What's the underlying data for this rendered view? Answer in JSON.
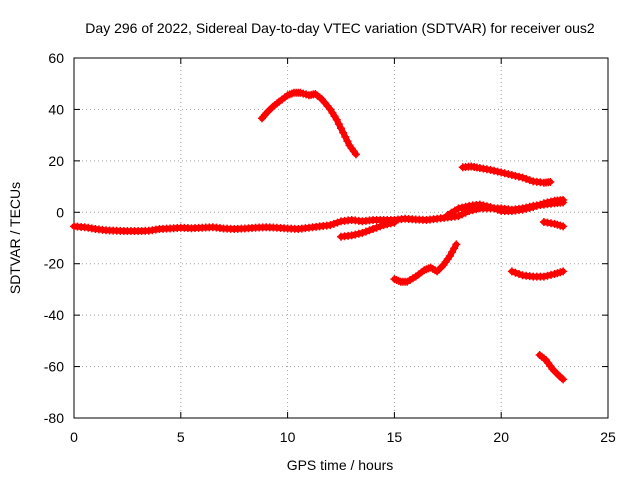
{
  "chart_data": {
    "type": "scatter",
    "title": "Day 296 of 2022, Sidereal Day-to-day VTEC variation (SDTVAR) for receiver ous2",
    "xlabel": "GPS time / hours",
    "ylabel": "SDTVAR / TECUs",
    "xlim": [
      0,
      25
    ],
    "ylim": [
      -80,
      60
    ],
    "xticks": [
      "0",
      "5",
      "10",
      "15",
      "20",
      "25"
    ],
    "yticks": [
      "-80",
      "-60",
      "-40",
      "-20",
      "0",
      "20",
      "40",
      "60"
    ],
    "grid": true,
    "legend": "none",
    "series_color": "#ff0000",
    "series": [
      {
        "name": "main-band",
        "points": [
          [
            0.0,
            -5.5
          ],
          [
            0.5,
            -5.8
          ],
          [
            1.0,
            -6.5
          ],
          [
            1.5,
            -7.0
          ],
          [
            2.0,
            -7.2
          ],
          [
            2.5,
            -7.3
          ],
          [
            3.0,
            -7.3
          ],
          [
            3.5,
            -7.2
          ],
          [
            4.0,
            -6.5
          ],
          [
            4.5,
            -6.3
          ],
          [
            5.0,
            -6.0
          ],
          [
            5.5,
            -6.2
          ],
          [
            6.0,
            -6.0
          ],
          [
            6.5,
            -5.8
          ],
          [
            7.0,
            -6.3
          ],
          [
            7.5,
            -6.5
          ],
          [
            8.0,
            -6.3
          ],
          [
            8.5,
            -6.0
          ],
          [
            9.0,
            -5.8
          ],
          [
            9.5,
            -6.0
          ],
          [
            10.0,
            -6.3
          ],
          [
            10.5,
            -6.5
          ],
          [
            11.0,
            -6.0
          ],
          [
            11.5,
            -5.5
          ],
          [
            12.0,
            -5.0
          ],
          [
            12.5,
            -3.5
          ],
          [
            13.0,
            -3.0
          ],
          [
            13.5,
            -3.5
          ],
          [
            14.0,
            -3.0
          ],
          [
            14.5,
            -3.0
          ],
          [
            15.0,
            -3.0
          ],
          [
            15.5,
            -2.5
          ],
          [
            16.0,
            -2.8
          ],
          [
            16.5,
            -3.0
          ],
          [
            17.0,
            -2.5
          ],
          [
            17.5,
            -2.0
          ],
          [
            18.0,
            -1.5
          ],
          [
            18.5,
            0.5
          ],
          [
            19.0,
            1.5
          ],
          [
            19.5,
            1.5
          ],
          [
            20.0,
            1.5
          ],
          [
            20.5,
            1.0
          ],
          [
            21.0,
            1.5
          ],
          [
            21.5,
            2.5
          ],
          [
            22.0,
            3.0
          ],
          [
            22.5,
            3.5
          ],
          [
            22.9,
            3.8
          ]
        ]
      },
      {
        "name": "lower-branch",
        "points": [
          [
            12.5,
            -9.5
          ],
          [
            13.0,
            -9.0
          ],
          [
            13.5,
            -8.0
          ],
          [
            14.0,
            -6.5
          ],
          [
            14.5,
            -5.0
          ],
          [
            15.0,
            -4.0
          ]
        ]
      },
      {
        "name": "upper-branch",
        "points": [
          [
            17.5,
            -1.0
          ],
          [
            18.0,
            1.5
          ],
          [
            18.5,
            2.5
          ],
          [
            19.0,
            3.0
          ],
          [
            19.5,
            2.0
          ],
          [
            20.0,
            0.5
          ],
          [
            20.5,
            0.5
          ],
          [
            21.0,
            1.0
          ],
          [
            21.5,
            2.0
          ],
          [
            22.0,
            3.5
          ],
          [
            22.5,
            4.5
          ],
          [
            22.9,
            4.8
          ]
        ]
      },
      {
        "name": "arc-40",
        "points": [
          [
            8.8,
            36.5
          ],
          [
            9.0,
            38.5
          ],
          [
            9.3,
            41.0
          ],
          [
            9.6,
            43.0
          ],
          [
            10.0,
            45.5
          ],
          [
            10.3,
            46.5
          ],
          [
            10.6,
            46.5
          ],
          [
            11.0,
            45.5
          ],
          [
            11.3,
            46.0
          ],
          [
            11.6,
            44.0
          ],
          [
            12.0,
            40.0
          ],
          [
            12.3,
            36.0
          ],
          [
            12.6,
            31.0
          ],
          [
            12.9,
            26.0
          ],
          [
            13.2,
            22.5
          ]
        ]
      },
      {
        "name": "arc-17",
        "points": [
          [
            18.2,
            17.5
          ],
          [
            18.6,
            17.8
          ],
          [
            19.0,
            17.2
          ],
          [
            19.5,
            16.5
          ],
          [
            20.0,
            15.5
          ],
          [
            20.5,
            14.5
          ],
          [
            21.0,
            13.5
          ],
          [
            21.5,
            12.0
          ],
          [
            22.0,
            11.5
          ],
          [
            22.3,
            11.8
          ]
        ]
      },
      {
        "name": "arc-minus24",
        "points": [
          [
            15.0,
            -26.0
          ],
          [
            15.3,
            -27.0
          ],
          [
            15.6,
            -27.0
          ],
          [
            16.0,
            -25.0
          ],
          [
            16.4,
            -22.5
          ],
          [
            16.7,
            -21.5
          ],
          [
            17.0,
            -23.0
          ],
          [
            17.3,
            -20.5
          ],
          [
            17.6,
            -17.0
          ],
          [
            17.9,
            -12.5
          ]
        ]
      },
      {
        "name": "arc-minus24-right",
        "points": [
          [
            20.5,
            -23.0
          ],
          [
            21.0,
            -24.5
          ],
          [
            21.5,
            -25.0
          ],
          [
            22.0,
            -25.0
          ],
          [
            22.5,
            -24.0
          ],
          [
            22.9,
            -23.0
          ]
        ]
      },
      {
        "name": "arc-minus60",
        "points": [
          [
            21.8,
            -55.5
          ],
          [
            22.1,
            -57.5
          ],
          [
            22.4,
            -61.0
          ],
          [
            22.7,
            -63.5
          ],
          [
            22.9,
            -65.0
          ]
        ]
      },
      {
        "name": "short-minus4",
        "points": [
          [
            22.0,
            -3.8
          ],
          [
            22.5,
            -4.5
          ],
          [
            22.9,
            -5.5
          ]
        ]
      }
    ]
  }
}
